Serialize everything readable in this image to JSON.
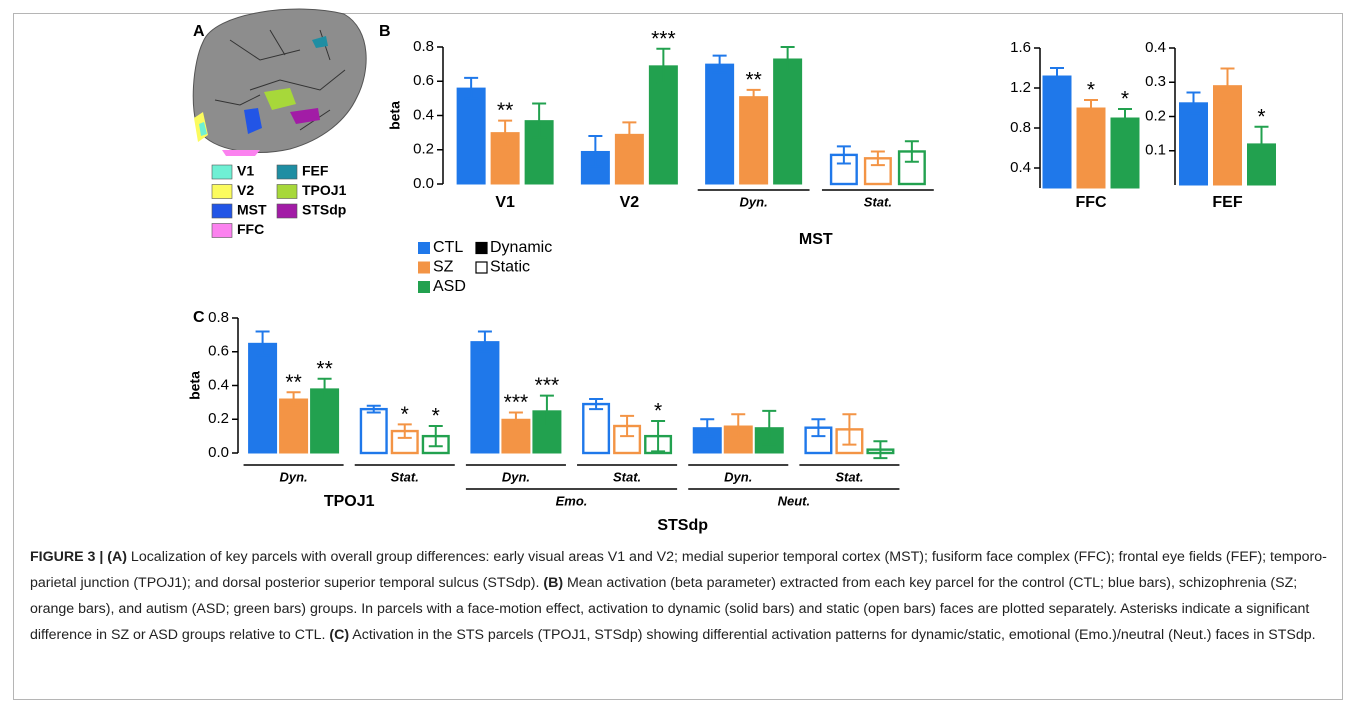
{
  "panel_labels": [
    "A",
    "B",
    "C"
  ],
  "parcels": [
    {
      "name": "V1",
      "color": "#6ff0d4"
    },
    {
      "name": "FEF",
      "color": "#1f8ea3"
    },
    {
      "name": "V2",
      "color": "#fbfb5e"
    },
    {
      "name": "TPOJ1",
      "color": "#a7d83a"
    },
    {
      "name": "MST",
      "color": "#2255e6"
    },
    {
      "name": "STSdp",
      "color": "#a21ca6"
    },
    {
      "name": "FFC",
      "color": "#fb82ef"
    }
  ],
  "legend": {
    "series": [
      {
        "name": "CTL",
        "color": "#1f78ea"
      },
      {
        "name": "SZ",
        "color": "#f39445"
      },
      {
        "name": "ASD",
        "color": "#22a14f"
      }
    ],
    "fills": [
      {
        "name": "Dynamic",
        "style": "solid"
      },
      {
        "name": "Static",
        "style": "open"
      }
    ]
  },
  "chart_data": [
    {
      "type": "bar",
      "ylabel": "beta",
      "ylim": [
        0,
        0.8
      ],
      "yticks": [
        {
          "value": 0,
          "label": "0.0"
        },
        0.2,
        0.4,
        0.6,
        0.8
      ],
      "groups": [
        {
          "name": "V1",
          "groups": [
            {
              "name": null,
              "fill": "solid"
            }
          ]
        },
        {
          "name": "V2",
          "groups": [
            {
              "name": null,
              "fill": "solid"
            }
          ]
        },
        {
          "name": "MST",
          "groups": [
            {
              "name": "Dyn.",
              "fill": "solid"
            },
            {
              "name": "Stat.",
              "fill": "open"
            }
          ]
        }
      ],
      "series": [
        {
          "values": [
            0.56,
            0.19,
            0.7,
            0.17
          ],
          "errors": [
            0.06,
            0.09,
            0.05,
            0.05
          ],
          "stars": [
            null,
            null,
            null,
            null
          ]
        },
        {
          "values": [
            0.3,
            0.29,
            0.51,
            0.15
          ],
          "errors": [
            0.07,
            0.07,
            0.04,
            0.04
          ],
          "stars": [
            "**",
            null,
            "**",
            null
          ]
        },
        {
          "values": [
            0.37,
            0.69,
            0.73,
            0.19
          ],
          "errors": [
            0.1,
            0.1,
            0.07,
            0.06
          ],
          "stars": [
            null,
            "***",
            null,
            null
          ]
        }
      ]
    },
    {
      "type": "bar",
      "ylim": [
        0.2,
        1.6
      ],
      "yticks": [
        0.4,
        0.8,
        1.2,
        1.6
      ],
      "groups": [
        {
          "name": "FFC",
          "groups": [
            {
              "name": null,
              "fill": "solid"
            }
          ]
        }
      ],
      "series": [
        {
          "values": [
            1.32
          ],
          "errors": [
            0.08
          ],
          "stars": [
            null
          ]
        },
        {
          "values": [
            1.0
          ],
          "errors": [
            0.08
          ],
          "stars": [
            "*"
          ]
        },
        {
          "values": [
            0.9
          ],
          "errors": [
            0.09
          ],
          "stars": [
            "*"
          ]
        }
      ]
    },
    {
      "type": "bar",
      "ylim": [
        0,
        0.4
      ],
      "yticks": [
        0.1,
        0.2,
        0.3,
        0.4
      ],
      "groups": [
        {
          "name": "FEF",
          "groups": [
            {
              "name": null,
              "fill": "solid"
            }
          ]
        }
      ],
      "series": [
        {
          "values": [
            0.24
          ],
          "errors": [
            0.03
          ],
          "stars": [
            null
          ]
        },
        {
          "values": [
            0.29
          ],
          "errors": [
            0.05
          ],
          "stars": [
            null
          ]
        },
        {
          "values": [
            0.12
          ],
          "errors": [
            0.05
          ],
          "stars": [
            "*"
          ]
        }
      ]
    },
    {
      "type": "bar",
      "ylabel": "beta",
      "ylim": [
        0,
        0.8
      ],
      "yticks": [
        {
          "value": 0,
          "label": "0.0"
        },
        0.2,
        0.4,
        0.6,
        0.8
      ],
      "groups": [
        {
          "name": "TPOJ1",
          "groups": [
            {
              "name": "Dyn.",
              "fill": "solid"
            },
            {
              "name": "Stat.",
              "fill": "open"
            }
          ]
        },
        {
          "name": "STSdp",
          "groups": [
            {
              "name": "Emo.",
              "groups": [
                {
                  "name": "Dyn.",
                  "fill": "solid"
                },
                {
                  "name": "Stat.",
                  "fill": "open"
                }
              ]
            },
            {
              "name": "Neut.",
              "groups": [
                {
                  "name": "Dyn.",
                  "fill": "solid"
                },
                {
                  "name": "Stat.",
                  "fill": "open"
                }
              ]
            }
          ]
        }
      ],
      "series": [
        {
          "values": [
            0.65,
            0.26,
            0.66,
            0.29,
            0.15,
            0.15
          ],
          "errors": [
            0.07,
            0.02,
            0.06,
            0.03,
            0.05,
            0.05
          ],
          "stars": [
            null,
            null,
            null,
            null,
            null,
            null
          ]
        },
        {
          "values": [
            0.32,
            0.13,
            0.2,
            0.16,
            0.16,
            0.14
          ],
          "errors": [
            0.04,
            0.04,
            0.04,
            0.06,
            0.07,
            0.09
          ],
          "stars": [
            "**",
            "*",
            "***",
            null,
            null,
            null
          ]
        },
        {
          "values": [
            0.38,
            0.1,
            0.25,
            0.1,
            0.15,
            0.02
          ],
          "errors": [
            0.06,
            0.06,
            0.09,
            0.09,
            0.1,
            0.05
          ],
          "stars": [
            "**",
            "*",
            "***",
            "*",
            null,
            null
          ]
        }
      ]
    }
  ],
  "caption": [
    {
      "text": "FIGURE 3 | (A)",
      "bold": true
    },
    {
      "text": " Localization of key parcels with overall group differences: early visual areas V1 and V2; medial superior temporal cortex (MST); fusiform face complex (FFC); frontal eye fields (FEF); temporo-parietal junction (TPOJ1); and dorsal posterior superior temporal sulcus (STSdp). ",
      "bold": false
    },
    {
      "text": "(B)",
      "bold": true
    },
    {
      "text": " Mean activation (beta parameter) extracted from each key parcel for the control (CTL; blue bars), schizophrenia (SZ; orange bars), and autism (ASD; green bars) groups. In parcels with a face-motion effect, activation to dynamic (solid bars) and static (open bars) faces are plotted separately. Asterisks indicate a significant difference in SZ or ASD groups relative to CTL. ",
      "bold": false
    },
    {
      "text": "(C)",
      "bold": true
    },
    {
      "text": " Activation in the STS parcels (TPOJ1, STSdp) showing differential activation patterns for dynamic/static, emotional (Emo.)/neutral (Neut.) faces in STSdp.",
      "bold": false
    }
  ]
}
